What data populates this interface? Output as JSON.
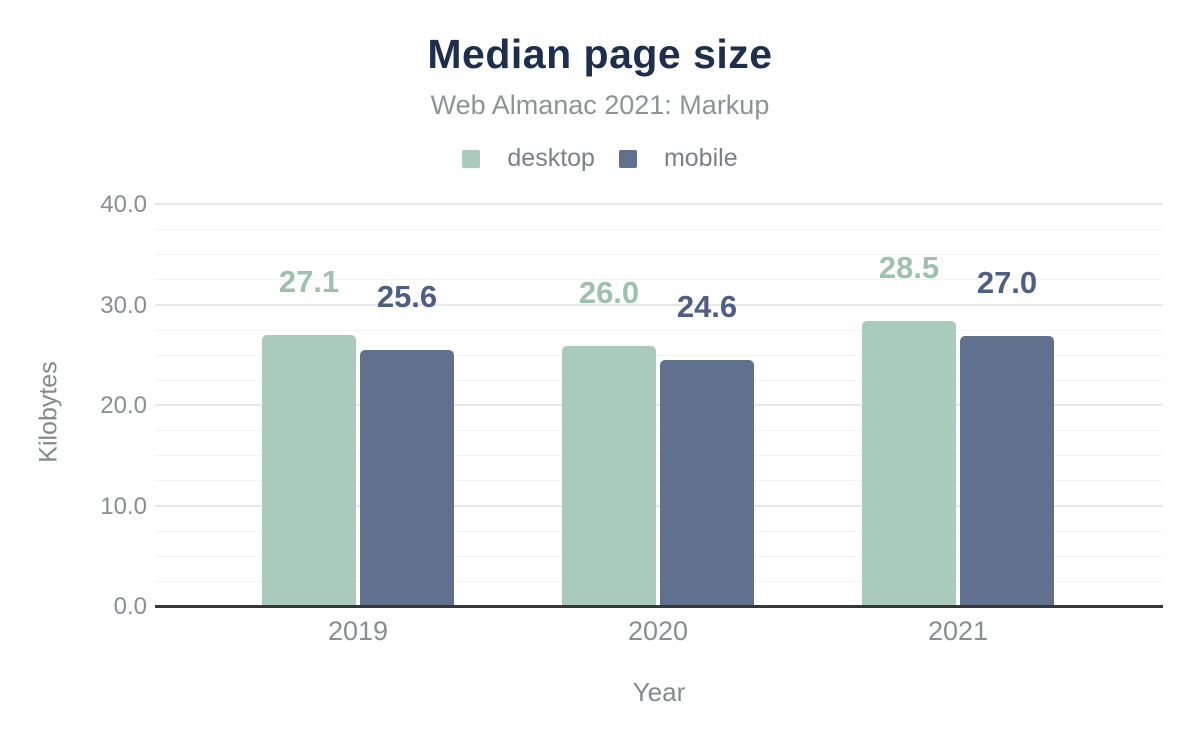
{
  "chart_data": {
    "type": "bar",
    "title": "Median page size",
    "subtitle": "Web Almanac 2021: Markup",
    "xlabel": "Year",
    "ylabel": "Kilobytes",
    "categories": [
      "2019",
      "2020",
      "2021"
    ],
    "series": [
      {
        "name": "desktop",
        "values": [
          27.1,
          26.0,
          28.5
        ],
        "color": "#a9cbbc",
        "label_color": "#9cc2ad"
      },
      {
        "name": "mobile",
        "values": [
          25.6,
          24.6,
          27.0
        ],
        "color": "#60708f",
        "label_color": "#4d5f86"
      }
    ],
    "value_labels": {
      "desktop": [
        "27.1",
        "26.0",
        "28.5"
      ],
      "mobile": [
        "25.6",
        "24.6",
        "27.0"
      ]
    },
    "ylim": [
      0,
      40
    ],
    "ytick_values": [
      0,
      10,
      20,
      30,
      40
    ],
    "ytick_labels": [
      "0.0",
      "10.0",
      "20.0",
      "30.0",
      "40.0"
    ],
    "ytick_minor_step": 2.5,
    "grid": "on",
    "legend_position": "top",
    "colors": {
      "title": "#1d2e4e",
      "subtitle": "#8f9296",
      "legend_text": "#7d8085",
      "tick_text": "#8a8e94",
      "axis_title_text": "#85898f",
      "axis_line": "#383838",
      "grid_major": "#e8e8e8",
      "grid_minor": "#f4f4f4",
      "background": "#ffffff"
    }
  }
}
